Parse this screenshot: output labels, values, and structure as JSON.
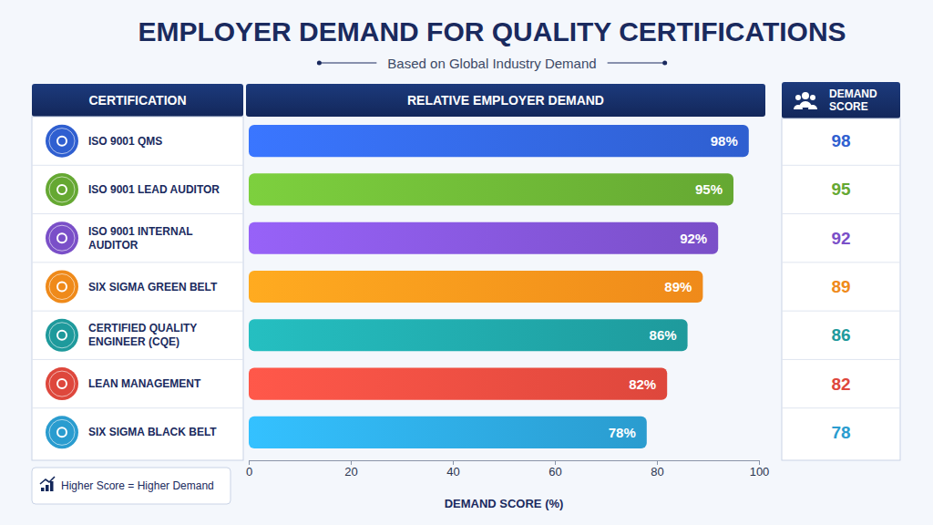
{
  "chart_data": {
    "type": "bar",
    "title": "EMPLOYER DEMAND FOR QUALITY CERTIFICATIONS",
    "subtitle": "Based on Global Industry Demand",
    "category_header": "CERTIFICATION",
    "bar_header": "RELATIVE EMPLOYER DEMAND",
    "score_header": "DEMAND SCORE",
    "note": "Higher Score = Higher Demand",
    "xlabel": "DEMAND SCORE (%)",
    "categories": [
      "ISO 9001 QMS",
      "ISO 9001 LEAD AUDITOR",
      "ISO 9001 INTERNAL AUDITOR",
      "SIX SIGMA GREEN BELT",
      "CERTIFIED QUALITY ENGINEER (CQE)",
      "LEAN MANAGEMENT",
      "SIX SIGMA BLACK BELT"
    ],
    "values": [
      98,
      95,
      92,
      89,
      86,
      82,
      78
    ],
    "value_labels": [
      "98%",
      "95%",
      "92%",
      "89%",
      "86%",
      "82%",
      "78%"
    ],
    "colors": [
      "#2f5fd0",
      "#65a832",
      "#7a4fc8",
      "#ef8a1a",
      "#1e9a9c",
      "#de473c",
      "#2a9ccf"
    ],
    "xlim": [
      0,
      100
    ],
    "xticks": [
      0,
      20,
      40,
      60,
      80,
      100
    ],
    "orientation": "horizontal",
    "data_labels": true,
    "grid": false
  }
}
